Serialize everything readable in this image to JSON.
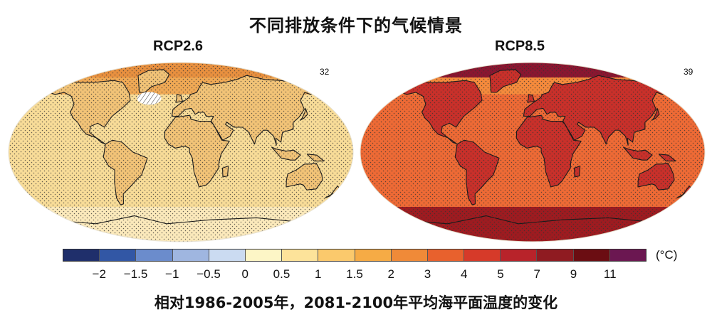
{
  "title": "不同排放条件下的气候情景",
  "panels": [
    {
      "label": "RCP2.6",
      "count": "32",
      "colors": {
        "ocean": "#f8dc98",
        "land": "#f2c377",
        "polar": "#fbe9bb",
        "warm": "#f0a955",
        "hot": "#e8903f"
      }
    },
    {
      "label": "RCP8.5",
      "count": "39",
      "colors": {
        "ocean": "#ee6a35",
        "land": "#c9302a",
        "polar": "#9e1b20",
        "warm": "#f58a3c",
        "hot": "#8a1630"
      }
    }
  ],
  "legend": {
    "colors": [
      "#1f2f6b",
      "#3257a5",
      "#6b8ccc",
      "#9fb6e0",
      "#cbdbf1",
      "#fdf6c6",
      "#fde39a",
      "#fbc96c",
      "#f6ab45",
      "#f08a38",
      "#e8612d",
      "#d63a29",
      "#b8232a",
      "#8f1b21",
      "#6b0d12",
      "#6b1751"
    ],
    "ticks": [
      "−2",
      "−1.5",
      "−1",
      "−0.5",
      "0",
      "0.5",
      "1",
      "1.5",
      "2",
      "3",
      "4",
      "5",
      "7",
      "9",
      "11"
    ],
    "unit": "(°C)"
  },
  "caption": "相对1986-2005年，2081-2100年平均海平面温度的变化"
}
